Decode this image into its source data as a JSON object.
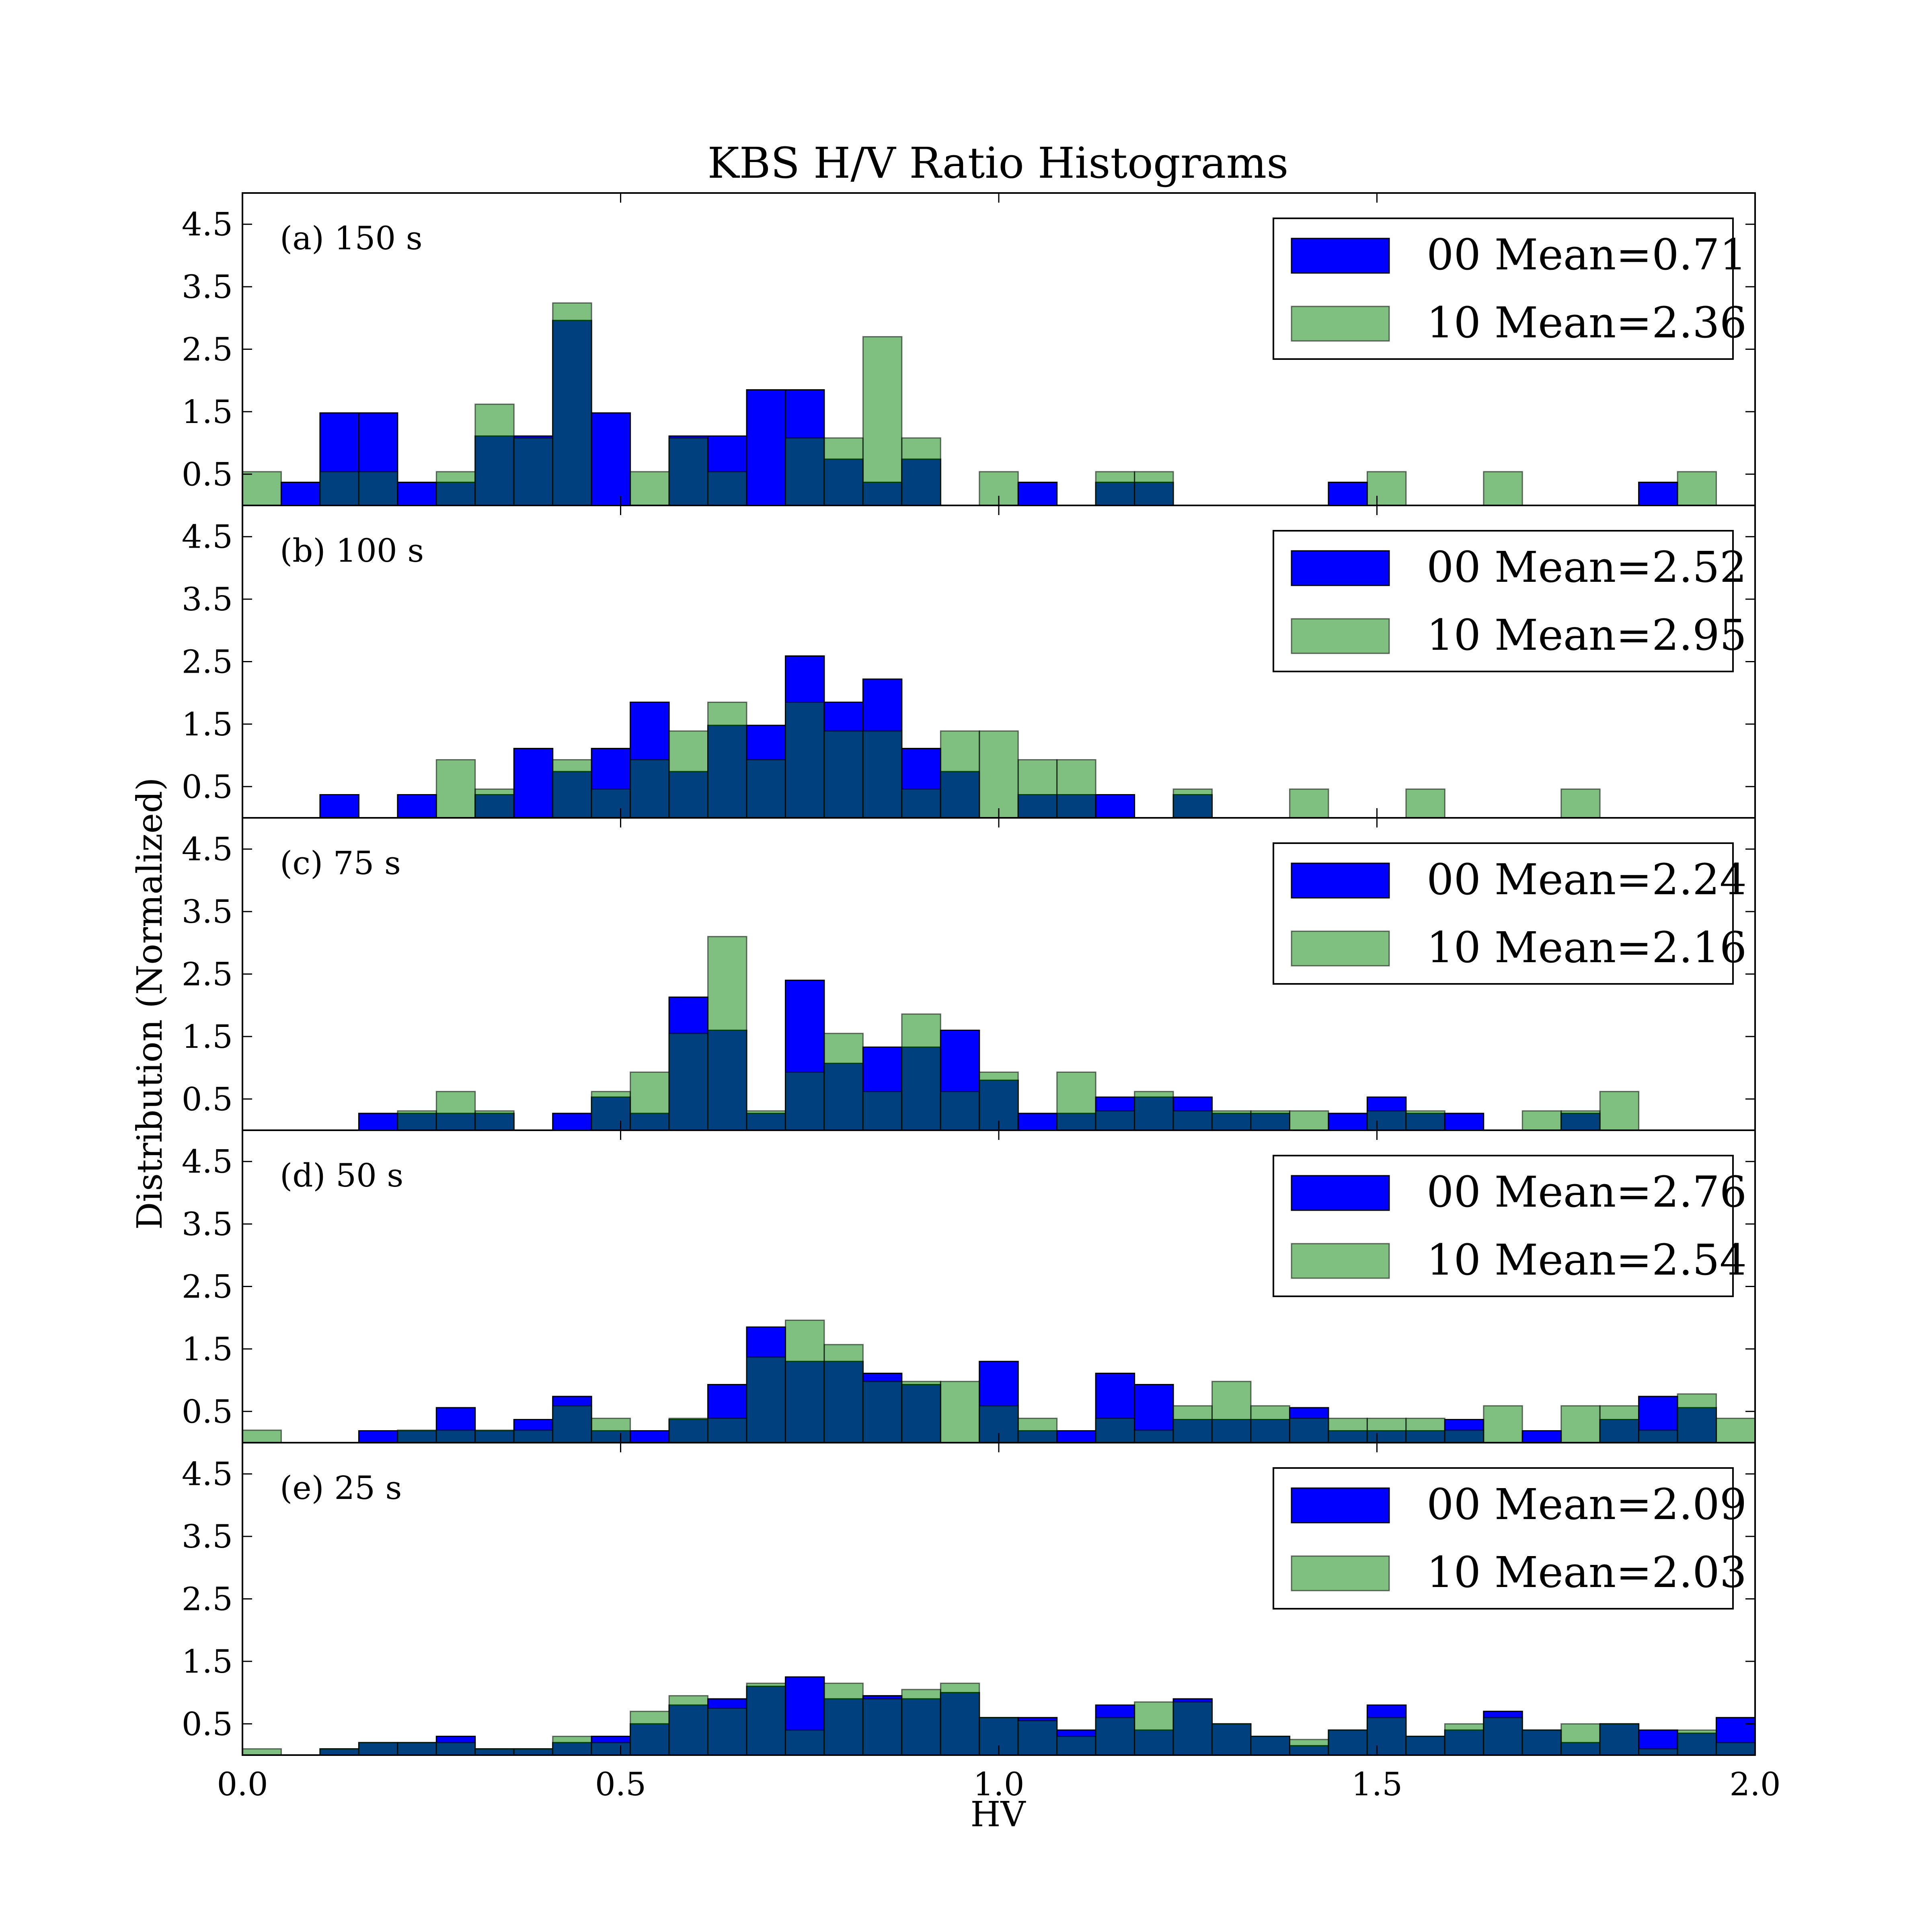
{
  "title": "KBS H/V Ratio Histograms",
  "xlabel": "HV",
  "ylabel": "Distribution (Normalized)",
  "colors": {
    "series_00": "#0000ff",
    "series_10": "#008000",
    "overlap": "#004080"
  },
  "chart_data": {
    "type": "bar",
    "bin_edges_range": [
      0.0,
      2.0
    ],
    "bin_count": 39,
    "xlim": [
      0.0,
      2.0
    ],
    "ylim": [
      0.0,
      5.0
    ],
    "xticks": [
      "0.0",
      "0.5",
      "1.0",
      "1.5",
      "2.0"
    ],
    "yticks": [
      "0.5",
      "1.5",
      "2.5",
      "3.5",
      "4.5"
    ],
    "x_tick_values": [
      0.0,
      0.5,
      1.0,
      1.5,
      2.0
    ],
    "y_tick_values": [
      0.5,
      1.5,
      2.5,
      3.5,
      4.5
    ],
    "panels": [
      {
        "label": "(a) 150 s",
        "legend": [
          "00 Mean=0.71",
          "10 Mean=2.36"
        ],
        "series": [
          {
            "name": "00",
            "values": [
              0,
              0.37,
              1.48,
              1.48,
              0.37,
              0.37,
              1.11,
              1.11,
              2.96,
              1.48,
              0,
              1.11,
              1.11,
              1.85,
              1.85,
              0.74,
              0.37,
              0.74,
              0,
              0,
              0.37,
              0,
              0.37,
              0.37,
              0,
              0,
              0,
              0,
              0.37,
              0,
              0,
              0,
              0,
              0,
              0,
              0,
              0.37,
              0,
              0
            ]
          },
          {
            "name": "10",
            "values": [
              0.54,
              0,
              0.54,
              0.54,
              0,
              0.54,
              1.62,
              1.08,
              3.24,
              0,
              0.54,
              1.08,
              0.54,
              0,
              1.08,
              1.08,
              2.7,
              1.08,
              0,
              0.54,
              0,
              0,
              0.54,
              0.54,
              0,
              0,
              0,
              0,
              0,
              0.54,
              0,
              0,
              0.54,
              0,
              0,
              0,
              0,
              0.54,
              0
            ]
          }
        ]
      },
      {
        "label": "(b) 100 s",
        "legend": [
          "00 Mean=2.52",
          "10 Mean=2.95"
        ],
        "series": [
          {
            "name": "00",
            "values": [
              0,
              0,
              0.37,
              0,
              0.37,
              0,
              0.37,
              1.11,
              0.74,
              1.11,
              1.85,
              0.74,
              1.48,
              1.48,
              2.59,
              1.85,
              2.22,
              1.11,
              0.74,
              0,
              0.37,
              0.37,
              0.37,
              0,
              0.37,
              0,
              0,
              0,
              0,
              0,
              0,
              0,
              0,
              0,
              0,
              0,
              0,
              0,
              0
            ]
          },
          {
            "name": "10",
            "values": [
              0,
              0,
              0,
              0,
              0,
              0.93,
              0.46,
              0,
              0.93,
              0.46,
              0.93,
              1.39,
              1.85,
              0.93,
              1.85,
              1.39,
              1.39,
              0.46,
              1.39,
              1.39,
              0.93,
              0.93,
              0,
              0,
              0.46,
              0,
              0,
              0.46,
              0,
              0,
              0.46,
              0,
              0,
              0,
              0.46,
              0,
              0,
              0,
              0
            ]
          }
        ]
      },
      {
        "label": "(c) 75 s",
        "legend": [
          "00 Mean=2.24",
          "10 Mean=2.16"
        ],
        "series": [
          {
            "name": "00",
            "values": [
              0,
              0,
              0,
              0.27,
              0.27,
              0.27,
              0.27,
              0,
              0.27,
              0.53,
              0.27,
              2.13,
              1.6,
              0.27,
              2.4,
              1.07,
              1.33,
              1.33,
              1.6,
              0.8,
              0.27,
              0.27,
              0.53,
              0.53,
              0.53,
              0.27,
              0.27,
              0,
              0.27,
              0.53,
              0.27,
              0.27,
              0,
              0,
              0.27,
              0,
              0,
              0,
              0
            ]
          },
          {
            "name": "10",
            "values": [
              0,
              0,
              0,
              0,
              0.31,
              0.62,
              0.31,
              0,
              0,
              0.62,
              0.93,
              1.55,
              3.1,
              0.31,
              0.93,
              1.55,
              0.62,
              1.86,
              0.62,
              0.93,
              0,
              0.93,
              0.31,
              0.62,
              0.31,
              0.31,
              0.31,
              0.31,
              0,
              0.31,
              0.31,
              0,
              0,
              0.31,
              0.31,
              0.62,
              0,
              0,
              0
            ]
          }
        ]
      },
      {
        "label": "(d) 50 s",
        "legend": [
          "00 Mean=2.76",
          "10 Mean=2.54"
        ],
        "series": [
          {
            "name": "00",
            "values": [
              0,
              0,
              0,
              0.19,
              0.19,
              0.56,
              0.19,
              0.37,
              0.74,
              0.19,
              0.19,
              0.37,
              0.93,
              1.85,
              1.3,
              1.3,
              1.11,
              0.93,
              0,
              1.3,
              0.19,
              0.19,
              1.11,
              0.93,
              0.37,
              0.37,
              0.37,
              0.56,
              0.19,
              0.19,
              0.19,
              0.37,
              0,
              0.19,
              0,
              0.37,
              0.74,
              0.56,
              0
            ]
          },
          {
            "name": "10",
            "values": [
              0.2,
              0,
              0,
              0,
              0.2,
              0.2,
              0.2,
              0.2,
              0.59,
              0.39,
              0,
              0.39,
              0.39,
              1.37,
              1.96,
              1.57,
              0.98,
              0.98,
              0.98,
              0.59,
              0.39,
              0,
              0.39,
              0.2,
              0.59,
              0.98,
              0.59,
              0.39,
              0.39,
              0.39,
              0.39,
              0.2,
              0.59,
              0,
              0.59,
              0.59,
              0.2,
              0.78,
              0.39
            ]
          }
        ]
      },
      {
        "label": "(e) 25 s",
        "legend": [
          "00 Mean=2.09",
          "10 Mean=2.03"
        ],
        "series": [
          {
            "name": "00",
            "values": [
              0,
              0,
              0.1,
              0.2,
              0.2,
              0.3,
              0.1,
              0.1,
              0.2,
              0.3,
              0.5,
              0.8,
              0.9,
              1.1,
              1.25,
              0.9,
              0.95,
              0.9,
              1.0,
              0.6,
              0.6,
              0.4,
              0.8,
              0.4,
              0.9,
              0.5,
              0.3,
              0.15,
              0.4,
              0.8,
              0.3,
              0.4,
              0.7,
              0.4,
              0.2,
              0.5,
              0.4,
              0.35,
              0.6
            ]
          },
          {
            "name": "10",
            "values": [
              0.1,
              0,
              0.1,
              0.2,
              0.2,
              0.2,
              0.1,
              0.1,
              0.3,
              0.2,
              0.7,
              0.95,
              0.75,
              1.15,
              0.4,
              1.15,
              0.9,
              1.05,
              1.15,
              0.6,
              0.55,
              0.3,
              0.6,
              0.85,
              0.85,
              0.5,
              0.3,
              0.25,
              0.4,
              0.6,
              0.3,
              0.5,
              0.6,
              0.4,
              0.5,
              0.5,
              0.1,
              0.4,
              0.2
            ]
          }
        ]
      }
    ]
  }
}
